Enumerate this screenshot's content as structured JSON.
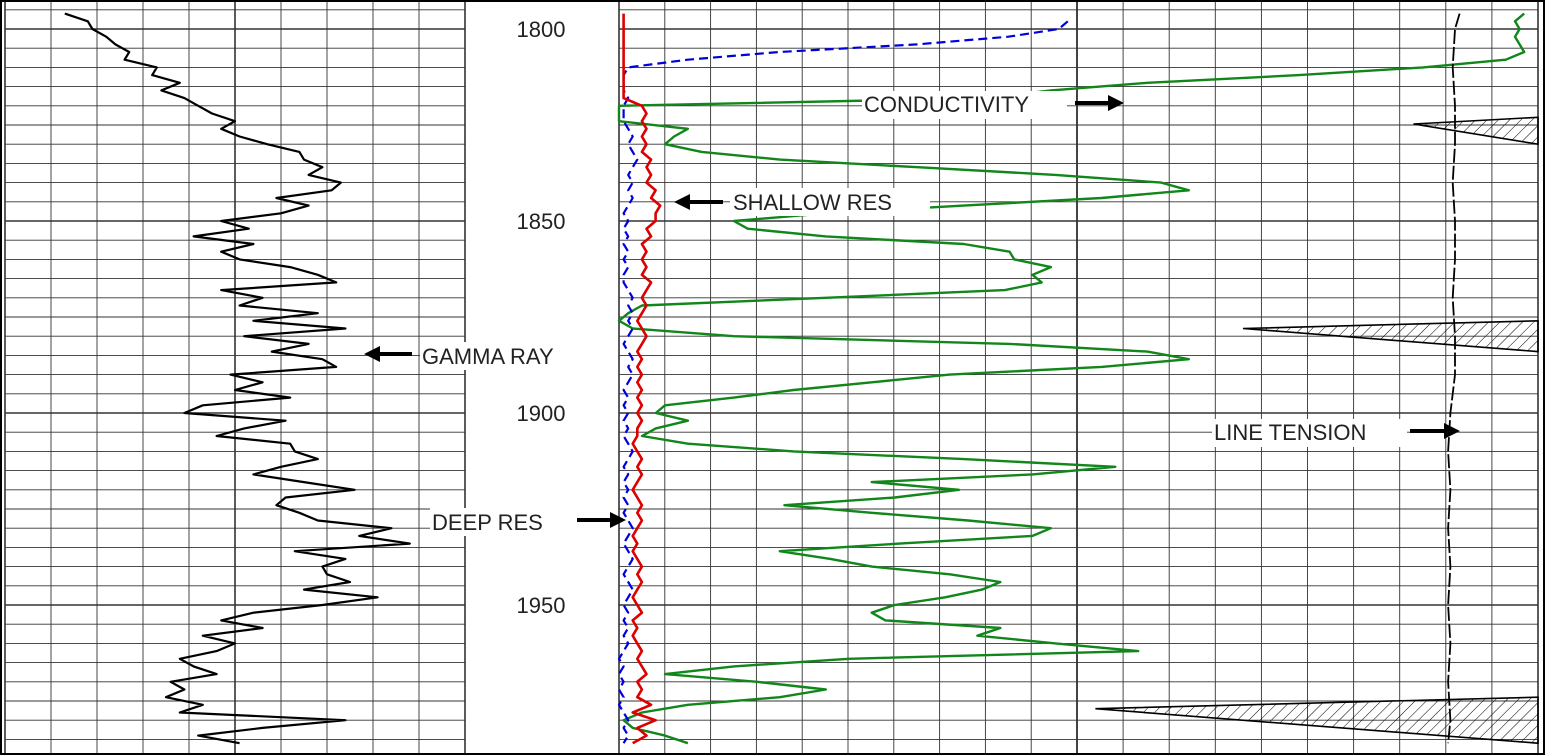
{
  "chart_data": {
    "type": "line",
    "title": "",
    "depth_axis": {
      "ticks": [
        1800,
        1850,
        1900,
        1950
      ],
      "range": [
        1795,
        1987
      ]
    },
    "grid": true,
    "colors": {
      "gamma": "#000000",
      "shallow": "#dd0000",
      "deep": "#0000dd",
      "conductivity": "#11861a",
      "tension": "#000000",
      "grid": "#333333"
    },
    "annotations": {
      "gamma": "GAMMA RAY",
      "shallow": "SHALLOW RES",
      "deep": "DEEP RES",
      "conductivity": "CONDUCTIVITY",
      "tension": "LINE TENSION"
    },
    "series": [
      {
        "name": "GAMMA RAY",
        "track": 1,
        "scale": [
          0,
          10
        ],
        "depth": [
          1796,
          1798,
          1800,
          1802,
          1804,
          1806,
          1808,
          1810,
          1812,
          1814,
          1816,
          1818,
          1820,
          1822,
          1824,
          1826,
          1828,
          1830,
          1832,
          1834,
          1836,
          1838,
          1840,
          1842,
          1844,
          1846,
          1848,
          1850,
          1852,
          1854,
          1856,
          1858,
          1860,
          1862,
          1864,
          1866,
          1868,
          1870,
          1872,
          1874,
          1876,
          1878,
          1880,
          1882,
          1884,
          1886,
          1888,
          1890,
          1892,
          1894,
          1896,
          1898,
          1900,
          1902,
          1904,
          1906,
          1908,
          1910,
          1912,
          1914,
          1916,
          1918,
          1920,
          1922,
          1924,
          1926,
          1928,
          1930,
          1932,
          1934,
          1936,
          1938,
          1940,
          1942,
          1944,
          1946,
          1948,
          1950,
          1952,
          1954,
          1956,
          1958,
          1960,
          1962,
          1964,
          1966,
          1968,
          1970,
          1972,
          1974,
          1976,
          1978,
          1980,
          1982,
          1984,
          1986
        ],
        "values": [
          1.3,
          1.8,
          1.9,
          2.2,
          2.4,
          2.7,
          2.6,
          3.3,
          3.2,
          3.8,
          3.4,
          3.9,
          4.2,
          4.5,
          5.0,
          4.7,
          5.1,
          5.7,
          6.4,
          6.5,
          6.9,
          6.6,
          7.3,
          7.1,
          5.9,
          6.6,
          6.0,
          4.7,
          5.3,
          4.1,
          5.4,
          4.7,
          5.1,
          6.2,
          6.8,
          7.2,
          4.7,
          5.6,
          5.1,
          6.8,
          5.4,
          7.4,
          5.2,
          6.6,
          5.8,
          6.9,
          7.2,
          4.9,
          5.6,
          5.0,
          6.2,
          4.3,
          3.9,
          6.1,
          5.2,
          4.6,
          6.2,
          6.3,
          6.8,
          6.0,
          5.4,
          6.5,
          7.6,
          6.1,
          5.9,
          6.4,
          6.8,
          8.4,
          7.7,
          8.8,
          6.3,
          7.4,
          6.9,
          7.0,
          7.5,
          6.5,
          8.1,
          6.9,
          5.4,
          4.7,
          5.6,
          4.3,
          5.0,
          4.6,
          3.8,
          4.1,
          4.6,
          3.6,
          3.9,
          3.5,
          4.3,
          3.8,
          7.4,
          5.6,
          4.2,
          5.1
        ]
      },
      {
        "name": "SHALLOW RES",
        "track": 2,
        "scale": [
          0,
          10
        ],
        "depth": [
          1796,
          1800,
          1804,
          1806,
          1808,
          1810,
          1812,
          1814,
          1816,
          1818,
          1820,
          1822,
          1824,
          1826,
          1828,
          1830,
          1832,
          1834,
          1836,
          1838,
          1840,
          1842,
          1844,
          1846,
          1848,
          1850,
          1852,
          1854,
          1856,
          1858,
          1860,
          1862,
          1864,
          1866,
          1868,
          1870,
          1872,
          1874,
          1876,
          1878,
          1880,
          1882,
          1884,
          1886,
          1888,
          1890,
          1892,
          1894,
          1896,
          1898,
          1900,
          1902,
          1904,
          1906,
          1908,
          1910,
          1912,
          1914,
          1916,
          1918,
          1920,
          1922,
          1924,
          1926,
          1928,
          1930,
          1932,
          1934,
          1936,
          1938,
          1940,
          1942,
          1944,
          1946,
          1948,
          1950,
          1952,
          1954,
          1956,
          1958,
          1960,
          1962,
          1964,
          1966,
          1968,
          1970,
          1972,
          1974,
          1976,
          1978,
          1980,
          1982,
          1984,
          1986
        ],
        "values": [
          0.1,
          0.1,
          0.1,
          0.1,
          0.1,
          0.1,
          0.1,
          0.1,
          0.1,
          0.1,
          0.5,
          0.6,
          0.5,
          0.6,
          0.5,
          0.6,
          0.5,
          0.7,
          0.6,
          0.7,
          0.6,
          0.8,
          0.7,
          0.9,
          0.8,
          0.8,
          0.6,
          0.7,
          0.5,
          0.6,
          0.5,
          0.6,
          0.5,
          0.7,
          0.6,
          0.5,
          0.6,
          0.5,
          0.4,
          0.5,
          0.6,
          0.5,
          0.4,
          0.5,
          0.4,
          0.5,
          0.4,
          0.5,
          0.4,
          0.5,
          0.4,
          0.5,
          0.4,
          0.4,
          0.3,
          0.4,
          0.5,
          0.4,
          0.5,
          0.4,
          0.3,
          0.4,
          0.5,
          0.4,
          0.5,
          0.4,
          0.3,
          0.4,
          0.3,
          0.4,
          0.5,
          0.4,
          0.5,
          0.4,
          0.3,
          0.4,
          0.5,
          0.3,
          0.4,
          0.3,
          0.4,
          0.5,
          0.4,
          0.5,
          0.6,
          0.4,
          0.5,
          0.4,
          0.7,
          0.3,
          0.8,
          0.4,
          0.6,
          0.3
        ]
      },
      {
        "name": "DEEP RES",
        "track": 2,
        "scale": [
          0,
          10
        ],
        "depth": [
          1798,
          1800,
          1802,
          1804,
          1806,
          1808,
          1810,
          1812,
          1814,
          1816,
          1818,
          1820,
          1822,
          1824,
          1826,
          1828,
          1830,
          1832,
          1834,
          1836,
          1838,
          1840,
          1842,
          1844,
          1846,
          1848,
          1850,
          1852,
          1854,
          1856,
          1858,
          1860,
          1862,
          1864,
          1866,
          1868,
          1870,
          1872,
          1874,
          1876,
          1878,
          1880,
          1882,
          1884,
          1886,
          1888,
          1890,
          1892,
          1894,
          1896,
          1898,
          1900,
          1902,
          1904,
          1906,
          1908,
          1910,
          1912,
          1914,
          1916,
          1918,
          1920,
          1922,
          1924,
          1926,
          1928,
          1930,
          1932,
          1934,
          1936,
          1938,
          1940,
          1942,
          1944,
          1946,
          1948,
          1950,
          1952,
          1954,
          1956,
          1958,
          1960,
          1962,
          1964,
          1966,
          1968,
          1970,
          1972,
          1974,
          1976,
          1978,
          1980,
          1982,
          1984,
          1986
        ],
        "values": [
          9.8,
          9.6,
          8.5,
          6.5,
          3.5,
          1.5,
          0.2,
          0.1,
          0.1,
          0.1,
          0.2,
          0.1,
          0.1,
          0.1,
          0.2,
          0.3,
          0.2,
          0.3,
          0.4,
          0.3,
          0.2,
          0.3,
          0.2,
          0.3,
          0.2,
          0.1,
          0.2,
          0.1,
          0.2,
          0.1,
          0.2,
          0.1,
          0.2,
          0.1,
          0.1,
          0.2,
          0.3,
          0.2,
          0.3,
          0.2,
          0.3,
          0.2,
          0.1,
          0.2,
          0.3,
          0.2,
          0.3,
          0.2,
          0.1,
          0.2,
          0.1,
          0.2,
          0.1,
          0.2,
          0.1,
          0.2,
          0.3,
          0.2,
          0.1,
          0.2,
          0.1,
          0.2,
          0.1,
          0.2,
          0.1,
          0.2,
          0.3,
          0.2,
          0.1,
          0.2,
          0.3,
          0.2,
          0.1,
          0.2,
          0.3,
          0.2,
          0.1,
          0.2,
          0.1,
          0.2,
          0.1,
          0.2,
          0.1,
          0.0,
          0.1,
          0.0,
          0.1,
          0.0,
          0.1,
          0.0,
          0.1,
          0.2,
          0.1,
          0.2,
          0.1
        ]
      },
      {
        "name": "CONDUCTIVITY",
        "track": "2-3",
        "scale": [
          0,
          20
        ],
        "depth": [
          1796,
          1798,
          1800,
          1802,
          1804,
          1806,
          1808,
          1810,
          1812,
          1814,
          1816,
          1818,
          1820,
          1822,
          1824,
          1826,
          1828,
          1830,
          1832,
          1834,
          1836,
          1838,
          1840,
          1842,
          1844,
          1846,
          1848,
          1850,
          1852,
          1854,
          1856,
          1858,
          1860,
          1862,
          1864,
          1866,
          1868,
          1870,
          1872,
          1874,
          1876,
          1878,
          1880,
          1882,
          1884,
          1886,
          1888,
          1890,
          1892,
          1894,
          1896,
          1898,
          1900,
          1902,
          1904,
          1906,
          1908,
          1910,
          1912,
          1914,
          1916,
          1918,
          1920,
          1922,
          1924,
          1926,
          1928,
          1930,
          1932,
          1934,
          1936,
          1938,
          1940,
          1942,
          1944,
          1946,
          1948,
          1950,
          1952,
          1954,
          1956,
          1958,
          1960,
          1962,
          1964,
          1966,
          1968,
          1970,
          1972,
          1974,
          1976,
          1978,
          1980,
          1982,
          1984,
          1986
        ],
        "values": [
          19.7,
          19.5,
          19.6,
          19.5,
          19.6,
          19.7,
          19.3,
          17.5,
          14.8,
          11.5,
          9.4,
          8.0,
          0.0,
          0.0,
          0.0,
          1.5,
          1.2,
          1.0,
          1.8,
          3.5,
          6.5,
          9.5,
          11.8,
          12.4,
          10.5,
          7.5,
          4.5,
          2.5,
          2.8,
          4.5,
          7.5,
          8.5,
          8.6,
          9.4,
          9.0,
          9.2,
          8.4,
          4.5,
          0.5,
          0.2,
          0.0,
          0.3,
          2.5,
          8.5,
          11.5,
          12.4,
          10.5,
          7.2,
          5.5,
          3.8,
          2.5,
          1.0,
          0.8,
          1.5,
          0.8,
          0.5,
          1.5,
          3.8,
          7.5,
          10.8,
          9.0,
          5.5,
          7.4,
          6.0,
          3.6,
          5.5,
          7.6,
          9.4,
          9.0,
          6.1,
          3.5,
          4.6,
          5.5,
          7.2,
          8.3,
          7.9,
          7.1,
          6.0,
          5.5,
          5.8,
          8.3,
          7.8,
          9.5,
          11.3,
          5.0,
          2.5,
          1.0,
          3.0,
          4.5,
          3.5,
          1.5,
          0.5,
          0.1,
          0.3,
          1.0,
          1.5
        ]
      },
      {
        "name": "LINE TENSION",
        "track": 3,
        "scale": [
          0,
          10
        ],
        "depth": [
          1796,
          1800,
          1810,
          1820,
          1830,
          1840,
          1850,
          1860,
          1870,
          1880,
          1890,
          1900,
          1910,
          1920,
          1930,
          1940,
          1950,
          1960,
          1970,
          1980,
          1986
        ],
        "values": [
          8.3,
          8.2,
          8.15,
          8.2,
          8.2,
          8.15,
          8.2,
          8.2,
          8.15,
          8.2,
          8.2,
          8.1,
          8.05,
          8.1,
          8.05,
          8.1,
          8.05,
          8.1,
          8.05,
          8.1,
          8.05
        ]
      }
    ],
    "tension_spikes": [
      {
        "depth": [
          1823,
          1830
        ],
        "from": 7.3
      },
      {
        "depth": [
          1876,
          1884
        ],
        "from": 3.6
      },
      {
        "depth": [
          1974,
          1986
        ],
        "from": 0.4
      }
    ]
  }
}
